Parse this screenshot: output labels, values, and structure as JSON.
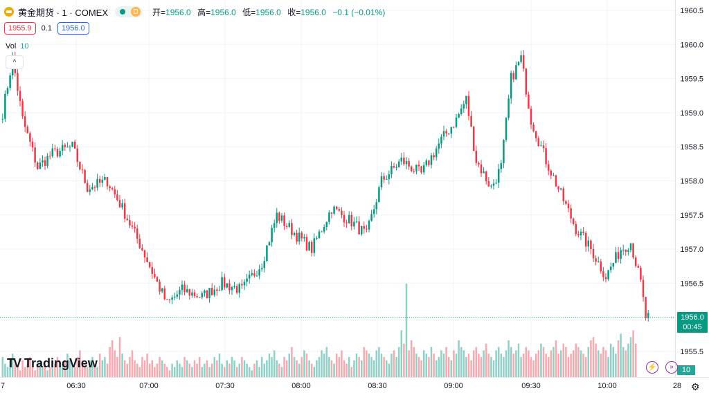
{
  "header": {
    "symbol": "黄金期货 · 1 · COMEX",
    "status_badge": "D",
    "ohlc": [
      {
        "label": "开=",
        "value": "1956.0"
      },
      {
        "label": "高=",
        "value": "1956.0"
      },
      {
        "label": "低=",
        "value": "1956.0"
      },
      {
        "label": "收=",
        "value": "1956.0"
      }
    ],
    "change": "−0.1 (−0.01%)"
  },
  "trade": {
    "sell": "1955.9",
    "spread": "0.1",
    "buy": "1956.0"
  },
  "volume_legend": {
    "label": "Vol",
    "value": "10"
  },
  "collapse_label": "^",
  "logo_text": "TradingView",
  "last_price_label": {
    "price": "1956.0",
    "countdown": "00:45"
  },
  "volume_badge": "10",
  "colors": {
    "up": "#089981",
    "down": "#f23645",
    "vol_up": "#8fd1c6",
    "vol_down": "#f7a9b0",
    "grid": "#f0f3fa"
  },
  "chart_data": {
    "type": "candlestick",
    "yaxis": {
      "ticks": [
        "1955.5",
        "1956.0",
        "1956.5",
        "1957.0",
        "1957.5",
        "1958.0",
        "1958.5",
        "1959.0",
        "1959.5",
        "1960.0",
        "1960.5"
      ],
      "ylim": [
        1955.35,
        1960.6
      ]
    },
    "xaxis": {
      "ticks": [
        "7",
        "06:30",
        "07:00",
        "07:30",
        "08:00",
        "08:30",
        "09:00",
        "09:30",
        "10:00",
        "28"
      ]
    },
    "grid": true,
    "anchors": [
      [
        0,
        1959.0
      ],
      [
        4,
        1959.8
      ],
      [
        8,
        1958.9
      ],
      [
        14,
        1958.2
      ],
      [
        20,
        1958.4
      ],
      [
        28,
        1958.5
      ],
      [
        34,
        1957.9
      ],
      [
        42,
        1958.0
      ],
      [
        48,
        1957.6
      ],
      [
        56,
        1957.0
      ],
      [
        62,
        1956.5
      ],
      [
        66,
        1956.2
      ],
      [
        72,
        1956.4
      ],
      [
        80,
        1956.3
      ],
      [
        88,
        1956.5
      ],
      [
        96,
        1956.4
      ],
      [
        104,
        1956.8
      ],
      [
        110,
        1957.5
      ],
      [
        118,
        1957.2
      ],
      [
        124,
        1957.0
      ],
      [
        132,
        1957.6
      ],
      [
        140,
        1957.4
      ],
      [
        146,
        1957.2
      ],
      [
        152,
        1958.0
      ],
      [
        160,
        1958.3
      ],
      [
        168,
        1958.1
      ],
      [
        176,
        1958.6
      ],
      [
        182,
        1958.9
      ],
      [
        186,
        1959.2
      ],
      [
        190,
        1958.3
      ],
      [
        196,
        1957.9
      ],
      [
        200,
        1958.2
      ],
      [
        204,
        1959.5
      ],
      [
        208,
        1959.8
      ],
      [
        212,
        1958.9
      ],
      [
        218,
        1958.3
      ],
      [
        224,
        1957.8
      ],
      [
        230,
        1957.3
      ],
      [
        236,
        1957.0
      ],
      [
        242,
        1956.6
      ],
      [
        248,
        1957.0
      ],
      [
        252,
        1957.1
      ],
      [
        256,
        1956.5
      ],
      [
        258,
        1956.0
      ]
    ],
    "volumes": [
      6,
      4,
      3,
      5,
      7,
      4,
      3,
      2,
      5,
      3,
      4,
      6,
      3,
      2,
      4,
      5,
      3,
      4,
      2,
      3,
      5,
      4,
      6,
      3,
      4,
      5,
      7,
      5,
      4,
      3,
      6,
      8,
      5,
      4,
      3,
      5,
      6,
      4,
      3,
      7,
      5,
      6,
      4,
      9,
      11,
      8,
      6,
      12,
      7,
      5,
      4,
      6,
      8,
      5,
      4,
      3,
      6,
      5,
      7,
      4,
      5,
      3,
      4,
      6,
      5,
      4,
      3,
      2,
      4,
      3,
      5,
      4,
      3,
      6,
      5,
      4,
      3,
      5,
      4,
      6,
      3,
      4,
      5,
      3,
      4,
      6,
      5,
      7,
      4,
      3,
      5,
      4,
      6,
      5,
      3,
      4,
      6,
      5,
      4,
      3,
      2,
      4,
      5,
      3,
      6,
      4,
      5,
      7,
      6,
      8,
      5,
      4,
      3,
      6,
      5,
      7,
      9,
      6,
      5,
      4,
      6,
      8,
      7,
      5,
      4,
      3,
      5,
      6,
      8,
      7,
      9,
      6,
      5,
      4,
      7,
      6,
      8,
      5,
      4,
      6,
      3,
      5,
      7,
      6,
      5,
      9,
      8,
      7,
      6,
      5,
      8,
      9,
      7,
      6,
      5,
      4,
      7,
      8,
      6,
      9,
      14,
      10,
      28,
      8,
      11,
      9,
      7,
      6,
      5,
      8,
      7,
      6,
      9,
      7,
      5,
      6,
      8,
      7,
      9,
      6,
      5,
      8,
      7,
      11,
      9,
      8,
      6,
      7,
      5,
      8,
      9,
      7,
      6,
      8,
      10,
      7,
      6,
      5,
      8,
      9,
      7,
      6,
      8,
      11,
      9,
      7,
      8,
      10,
      6,
      7,
      9,
      8,
      6,
      5,
      7,
      8,
      10,
      9,
      7,
      6,
      8,
      9,
      11,
      7,
      8,
      10,
      9,
      6,
      7,
      8,
      10,
      9,
      8,
      7,
      6,
      9,
      11,
      12,
      10,
      8,
      7,
      9,
      8,
      6,
      10,
      9,
      7,
      11,
      13,
      9,
      8,
      10,
      12,
      14,
      10
    ],
    "last_price": 1956.0
  }
}
